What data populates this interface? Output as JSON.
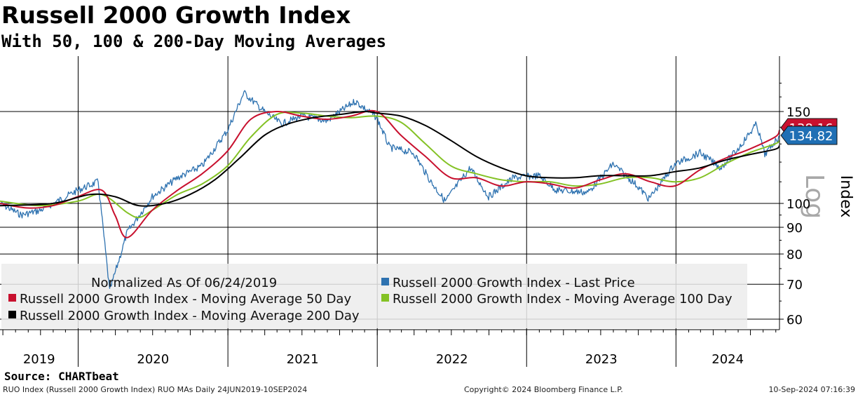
{
  "chart_data": {
    "type": "line",
    "title": "Russell 2000 Growth Index",
    "subtitle": "With 50, 100 & 200-Day Moving Averages",
    "ylabel": "Index",
    "ylabel_scale": "Log",
    "yscale": "log",
    "ylim": [
      55,
      180
    ],
    "y_ticks": [
      60,
      70,
      80,
      90,
      100,
      150
    ],
    "y_tick_labels": [
      "60",
      "70",
      "80",
      "90",
      "100",
      "150"
    ],
    "x_range": [
      "2019-06-24",
      "2024-09-10"
    ],
    "x_tick_labels": [
      "2019",
      "2020",
      "2021",
      "2022",
      "2023",
      "2024"
    ],
    "grid": true,
    "legend_position": "bottom-left",
    "legend_note": "Normalized As Of 06/24/2019",
    "last_value_labels": [
      {
        "series": "Russell 2000 Growth Index - Last Price",
        "value": "134.82",
        "color": "#1f6fb4"
      },
      {
        "series": "Russell 2000 Growth Index - Moving Average 50 Day",
        "value": "138.16",
        "color": "#c8102e"
      }
    ],
    "series": [
      {
        "name": "Russell 2000 Growth Index - Last Price",
        "color": "#2e72b0",
        "x": [
          "2019-06-24",
          "2019-08-15",
          "2019-10-01",
          "2019-12-31",
          "2020-02-19",
          "2020-03-18",
          "2020-04-30",
          "2020-06-30",
          "2020-08-31",
          "2020-10-30",
          "2020-12-31",
          "2021-02-09",
          "2021-03-31",
          "2021-05-12",
          "2021-06-30",
          "2021-08-31",
          "2021-11-08",
          "2021-12-31",
          "2022-01-31",
          "2022-03-31",
          "2022-05-12",
          "2022-06-16",
          "2022-08-16",
          "2022-09-30",
          "2022-11-30",
          "2023-01-31",
          "2023-03-15",
          "2023-05-31",
          "2023-07-31",
          "2023-09-29",
          "2023-10-27",
          "2023-12-29",
          "2024-02-29",
          "2024-04-19",
          "2024-05-31",
          "2024-07-16",
          "2024-08-05",
          "2024-09-10"
        ],
        "values": [
          100,
          95,
          97,
          106,
          110,
          68,
          88,
          103,
          112,
          118,
          138,
          163,
          150,
          142,
          147,
          144,
          157,
          146,
          128,
          125,
          110,
          101,
          117,
          103,
          112,
          113,
          106,
          105,
          119,
          108,
          102,
          119,
          125,
          117,
          127,
          142,
          124,
          134.82
        ]
      },
      {
        "name": "Russell 2000 Growth Index - Moving Average 50 Day",
        "color": "#c8102e",
        "x": [
          "2019-06-24",
          "2019-08-31",
          "2019-10-31",
          "2019-12-31",
          "2020-02-28",
          "2020-03-31",
          "2020-04-30",
          "2020-06-30",
          "2020-08-31",
          "2020-10-30",
          "2020-12-31",
          "2021-02-26",
          "2021-04-30",
          "2021-06-30",
          "2021-08-31",
          "2021-10-29",
          "2021-12-31",
          "2022-02-28",
          "2022-04-29",
          "2022-06-30",
          "2022-08-31",
          "2022-10-31",
          "2022-12-30",
          "2023-02-28",
          "2023-04-28",
          "2023-06-30",
          "2023-08-31",
          "2023-10-31",
          "2023-12-29",
          "2024-02-29",
          "2024-04-30",
          "2024-06-28",
          "2024-08-30",
          "2024-09-10"
        ],
        "values": [
          100,
          98,
          99,
          103,
          106,
          95,
          86,
          97,
          106,
          114,
          126,
          145,
          150,
          147,
          145,
          147,
          150,
          135,
          123,
          112,
          112,
          108,
          110,
          109,
          107,
          111,
          114,
          110,
          108,
          116,
          122,
          127,
          134,
          138.16
        ]
      },
      {
        "name": "Russell 2000 Growth Index - Moving Average 100 Day",
        "color": "#84c225",
        "x": [
          "2019-06-24",
          "2019-09-30",
          "2019-12-31",
          "2020-02-28",
          "2020-04-30",
          "2020-05-29",
          "2020-06-30",
          "2020-08-31",
          "2020-10-30",
          "2020-12-31",
          "2021-02-26",
          "2021-04-30",
          "2021-06-30",
          "2021-08-31",
          "2021-10-29",
          "2021-12-31",
          "2022-02-28",
          "2022-04-29",
          "2022-06-30",
          "2022-08-31",
          "2022-10-31",
          "2022-12-30",
          "2023-02-28",
          "2023-04-28",
          "2023-06-30",
          "2023-08-31",
          "2023-10-31",
          "2023-12-29",
          "2024-02-29",
          "2024-04-30",
          "2024-06-28",
          "2024-08-30",
          "2024-09-10"
        ],
        "values": [
          101,
          99,
          101,
          104,
          96,
          94,
          97,
          104,
          109,
          118,
          134,
          148,
          149,
          147,
          146,
          147,
          143,
          130,
          118,
          114,
          111,
          110,
          110,
          108,
          109,
          112,
          112,
          110,
          112,
          119,
          125,
          130,
          132
        ]
      },
      {
        "name": "Russell 2000 Growth Index - Moving Average 200 Day",
        "color": "#000000",
        "x": [
          "2019-06-24",
          "2019-10-31",
          "2020-01-31",
          "2020-03-31",
          "2020-05-29",
          "2020-07-31",
          "2020-09-30",
          "2020-11-30",
          "2021-01-29",
          "2021-03-31",
          "2021-05-28",
          "2021-07-30",
          "2021-09-30",
          "2021-11-30",
          "2021-12-31",
          "2022-02-28",
          "2022-04-29",
          "2022-06-30",
          "2022-08-31",
          "2022-10-31",
          "2022-12-30",
          "2023-02-28",
          "2023-04-28",
          "2023-06-30",
          "2023-08-31",
          "2023-10-31",
          "2023-12-29",
          "2024-02-29",
          "2024-04-30",
          "2024-06-28",
          "2024-08-30",
          "2024-09-10"
        ],
        "values": [
          99,
          100,
          104,
          103,
          99,
          100,
          104,
          111,
          122,
          135,
          142,
          146,
          148,
          150,
          149,
          147,
          141,
          132,
          123,
          117,
          113,
          112,
          112,
          113,
          113,
          113,
          115,
          117,
          121,
          124,
          127,
          129
        ]
      }
    ]
  },
  "footer": {
    "source": "Source: CHARTbeat",
    "left": "RUO Index (Russell 2000 Growth Index) RUO MAs  Daily 24JUN2019-10SEP2024",
    "center": "Copyright© 2024 Bloomberg Finance L.P.",
    "right": "10-Sep-2024 07:16:39"
  }
}
